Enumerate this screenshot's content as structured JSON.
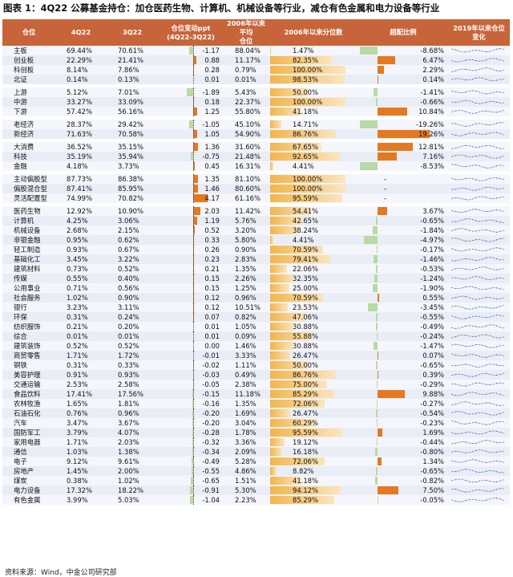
{
  "title": "图表 1：4Q22 公募基金持仓：加仓医药生物、计算机、机械设备等行业，减仓有色金属和电力设备等行业",
  "source": "资料来源：Wind，中金公司研究部",
  "headers": [
    "仓位",
    "4Q22",
    "3Q22",
    "仓位变动ppt\n(4Q22-3Q22)",
    "2006年以来平均\n仓位",
    "2006年以来分位数",
    "超配比例",
    "2019年以来仓位\n变化"
  ],
  "colors": {
    "header_bg": "#c8643a",
    "pos_bar": "#e37a22",
    "neg_bar": "#b9d9a5",
    "pct_bar": "#f2b54a"
  },
  "groups": [
    [
      {
        "name": "主板",
        "q4": "69.44%",
        "q3": "70.61%",
        "chg": -1.17,
        "avg": "88.04%",
        "pct": 1.47,
        "ovw": -8.68
      },
      {
        "name": "创业板",
        "q4": "22.29%",
        "q3": "21.41%",
        "chg": 0.88,
        "avg": "11.17%",
        "pct": 82.35,
        "ovw": 6.47
      },
      {
        "name": "科创板",
        "q4": "8.14%",
        "q3": "7.86%",
        "chg": 0.28,
        "avg": "0.79%",
        "pct": 100.0,
        "ovw": 2.29
      },
      {
        "name": "北证",
        "q4": "0.14%",
        "q3": "0.13%",
        "chg": 0.01,
        "avg": "0.01%",
        "pct": 98.53,
        "ovw": 0.14
      }
    ],
    [
      {
        "name": "上游",
        "q4": "5.12%",
        "q3": "7.01%",
        "chg": -1.89,
        "avg": "5.43%",
        "pct": 50.0,
        "ovw": -1.41
      },
      {
        "name": "中游",
        "q4": "33.27%",
        "q3": "33.09%",
        "chg": 0.18,
        "avg": "22.37%",
        "pct": 100.0,
        "ovw": -0.66
      },
      {
        "name": "下游",
        "q4": "57.42%",
        "q3": "56.16%",
        "chg": 1.25,
        "avg": "55.80%",
        "pct": 41.18,
        "ovw": 10.84
      }
    ],
    [
      {
        "name": "老经济",
        "q4": "28.37%",
        "q3": "29.42%",
        "chg": -1.05,
        "avg": "45.10%",
        "pct": 14.71,
        "ovw": -19.26
      },
      {
        "name": "新经济",
        "q4": "71.63%",
        "q3": "70.58%",
        "chg": 1.05,
        "avg": "54.90%",
        "pct": 86.76,
        "ovw": 19.26
      }
    ],
    [
      {
        "name": "大消费",
        "q4": "36.52%",
        "q3": "35.15%",
        "chg": 1.36,
        "avg": "31.60%",
        "pct": 67.65,
        "ovw": 12.81
      },
      {
        "name": "科技",
        "q4": "35.19%",
        "q3": "35.94%",
        "chg": -0.75,
        "avg": "21.48%",
        "pct": 92.65,
        "ovw": 7.16
      },
      {
        "name": "金融",
        "q4": "4.18%",
        "q3": "3.73%",
        "chg": 0.45,
        "avg": "16.31%",
        "pct": 4.41,
        "ovw": -8.53
      }
    ],
    [
      {
        "name": "主动偏股型",
        "q4": "87.73%",
        "q3": "86.38%",
        "chg": 1.35,
        "avg": "81.10%",
        "pct": 100.0,
        "ovw": null
      },
      {
        "name": "偏股混合型",
        "q4": "87.41%",
        "q3": "85.95%",
        "chg": 1.46,
        "avg": "80.60%",
        "pct": 100.0,
        "ovw": null
      },
      {
        "name": "灵活配置型",
        "q4": "74.99%",
        "q3": "70.82%",
        "chg": 4.17,
        "avg": "61.16%",
        "pct": 95.59,
        "ovw": null
      }
    ],
    [
      {
        "name": "医药生物",
        "q4": "12.92%",
        "q3": "10.90%",
        "chg": 2.03,
        "avg": "11.42%",
        "pct": 54.41,
        "ovw": 3.67
      },
      {
        "name": "计算机",
        "q4": "4.25%",
        "q3": "3.06%",
        "chg": 1.19,
        "avg": "5.76%",
        "pct": 42.65,
        "ovw": -0.65
      },
      {
        "name": "机械设备",
        "q4": "2.68%",
        "q3": "2.15%",
        "chg": 0.52,
        "avg": "3.20%",
        "pct": 38.24,
        "ovw": -1.84
      },
      {
        "name": "非银金融",
        "q4": "0.95%",
        "q3": "0.62%",
        "chg": 0.33,
        "avg": "5.80%",
        "pct": 4.41,
        "ovw": -4.97
      },
      {
        "name": "轻工制造",
        "q4": "0.93%",
        "q3": "0.67%",
        "chg": 0.26,
        "avg": "0.90%",
        "pct": 70.59,
        "ovw": -0.17
      },
      {
        "name": "基础化工",
        "q4": "3.45%",
        "q3": "3.22%",
        "chg": 0.23,
        "avg": "2.83%",
        "pct": 79.41,
        "ovw": -1.46
      },
      {
        "name": "建筑材料",
        "q4": "0.73%",
        "q3": "0.52%",
        "chg": 0.21,
        "avg": "1.35%",
        "pct": 22.06,
        "ovw": -0.53
      },
      {
        "name": "传媒",
        "q4": "0.55%",
        "q3": "0.40%",
        "chg": 0.15,
        "avg": "2.26%",
        "pct": 32.35,
        "ovw": -1.24
      },
      {
        "name": "公用事业",
        "q4": "0.71%",
        "q3": "0.56%",
        "chg": 0.15,
        "avg": "1.25%",
        "pct": 25.0,
        "ovw": -1.9
      },
      {
        "name": "社会服务",
        "q4": "1.02%",
        "q3": "0.90%",
        "chg": 0.12,
        "avg": "0.96%",
        "pct": 70.59,
        "ovw": 0.55
      },
      {
        "name": "银行",
        "q4": "3.23%",
        "q3": "3.11%",
        "chg": 0.12,
        "avg": "10.51%",
        "pct": 23.53,
        "ovw": -3.45
      },
      {
        "name": "环保",
        "q4": "0.31%",
        "q3": "0.24%",
        "chg": 0.07,
        "avg": "0.82%",
        "pct": 47.06,
        "ovw": -0.55
      },
      {
        "name": "纺织服饰",
        "q4": "0.21%",
        "q3": "0.20%",
        "chg": 0.01,
        "avg": "1.05%",
        "pct": 30.88,
        "ovw": -0.49
      },
      {
        "name": "综合",
        "q4": "0.01%",
        "q3": "0.01%",
        "chg": 0.01,
        "avg": "0.09%",
        "pct": 55.88,
        "ovw": -0.24
      },
      {
        "name": "建筑装饰",
        "q4": "0.52%",
        "q3": "0.52%",
        "chg": 0.0,
        "avg": "1.46%",
        "pct": 30.88,
        "ovw": -1.47
      },
      {
        "name": "商贸零售",
        "q4": "1.71%",
        "q3": "1.72%",
        "chg": -0.01,
        "avg": "3.33%",
        "pct": 26.47,
        "ovw": 0.07
      },
      {
        "name": "钢铁",
        "q4": "0.31%",
        "q3": "0.33%",
        "chg": -0.02,
        "avg": "1.11%",
        "pct": 50.0,
        "ovw": -0.65
      },
      {
        "name": "美容护理",
        "q4": "0.91%",
        "q3": "0.93%",
        "chg": -0.03,
        "avg": "0.49%",
        "pct": 86.76,
        "ovw": 0.39
      },
      {
        "name": "交通运输",
        "q4": "2.53%",
        "q3": "2.58%",
        "chg": -0.05,
        "avg": "2.38%",
        "pct": 75.0,
        "ovw": -0.29
      },
      {
        "name": "食品饮料",
        "q4": "17.41%",
        "q3": "17.56%",
        "chg": -0.15,
        "avg": "11.18%",
        "pct": 85.29,
        "ovw": 9.88
      },
      {
        "name": "农林牧渔",
        "q4": "1.65%",
        "q3": "1.81%",
        "chg": -0.16,
        "avg": "1.35%",
        "pct": 72.06,
        "ovw": -0.27
      },
      {
        "name": "石油石化",
        "q4": "0.76%",
        "q3": "0.96%",
        "chg": -0.2,
        "avg": "1.69%",
        "pct": 26.47,
        "ovw": -0.54
      },
      {
        "name": "汽车",
        "q4": "3.47%",
        "q3": "3.67%",
        "chg": -0.2,
        "avg": "3.04%",
        "pct": 60.29,
        "ovw": -0.23
      },
      {
        "name": "国防军工",
        "q4": "3.79%",
        "q3": "4.07%",
        "chg": -0.28,
        "avg": "1.78%",
        "pct": 95.59,
        "ovw": 1.69
      },
      {
        "name": "家用电器",
        "q4": "1.71%",
        "q3": "2.03%",
        "chg": -0.32,
        "avg": "3.36%",
        "pct": 19.12,
        "ovw": -0.44
      },
      {
        "name": "通信",
        "q4": "1.03%",
        "q3": "1.38%",
        "chg": -0.34,
        "avg": "2.09%",
        "pct": 16.18,
        "ovw": -0.8
      },
      {
        "name": "电子",
        "q4": "9.12%",
        "q3": "9.61%",
        "chg": -0.49,
        "avg": "5.28%",
        "pct": 72.06,
        "ovw": 1.34
      },
      {
        "name": "房地产",
        "q4": "1.45%",
        "q3": "2.00%",
        "chg": -0.55,
        "avg": "4.86%",
        "pct": 8.82,
        "ovw": -0.65
      },
      {
        "name": "煤炭",
        "q4": "0.38%",
        "q3": "1.02%",
        "chg": -0.65,
        "avg": "1.51%",
        "pct": 41.18,
        "ovw": -0.82
      },
      {
        "name": "电力设备",
        "q4": "17.32%",
        "q3": "18.22%",
        "chg": -0.91,
        "avg": "5.30%",
        "pct": 94.12,
        "ovw": 7.5
      },
      {
        "name": "有色金属",
        "q4": "3.99%",
        "q3": "5.03%",
        "chg": -1.04,
        "avg": "2.23%",
        "pct": 85.29,
        "ovw": -0.05
      }
    ]
  ]
}
